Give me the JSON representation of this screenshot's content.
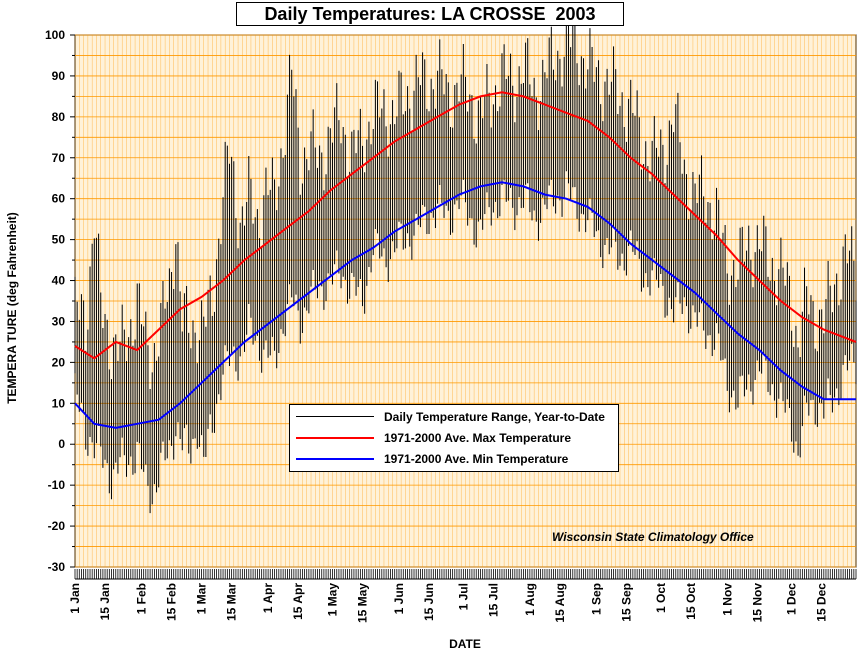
{
  "chart_data": {
    "type": "line",
    "title": "Daily Temperatures: LA CROSSE  2003",
    "xlabel": "DATE",
    "ylabel": "TEMPERA TURE (deg Fahrenheit)",
    "ylim": [
      -30,
      100
    ],
    "yticks": [
      -30,
      -20,
      -10,
      0,
      10,
      20,
      30,
      40,
      50,
      60,
      70,
      80,
      90,
      100
    ],
    "x_tick_labels": [
      "1 Jan",
      "15 Jan",
      "1 Feb",
      "15 Feb",
      "1 Mar",
      "15 Mar",
      "1 Apr",
      "15 Apr",
      "1 May",
      "15 May",
      "1 Jun",
      "15 Jun",
      "1 Jul",
      "15 Jul",
      "1 Aug",
      "15 Aug",
      "1 Sep",
      "15 Sep",
      "1 Oct",
      "15 Oct",
      "1 Nov",
      "15 Nov",
      "1 Dec",
      "15 Dec"
    ],
    "x_tick_days": [
      1,
      15,
      32,
      46,
      60,
      74,
      91,
      105,
      121,
      135,
      152,
      166,
      182,
      196,
      213,
      227,
      244,
      258,
      274,
      288,
      305,
      319,
      335,
      349
    ],
    "grid": true,
    "legend_position": "center-bottom",
    "annotation": "Wisconsin State Climatology Office",
    "colors": {
      "range": "#000000",
      "max": "#ff0000",
      "min": "#0000ff",
      "grid": "#ff9900",
      "background": "#fff2d9"
    },
    "series": [
      {
        "name": "Daily Temperature Range, Year-to-Date",
        "style": "range",
        "x_unit": "day_of_year",
        "points": [
          [
            1,
            12,
            32
          ],
          [
            6,
            3,
            30
          ],
          [
            10,
            0,
            56
          ],
          [
            13,
            -3,
            33
          ],
          [
            18,
            -8,
            25
          ],
          [
            22,
            -5,
            22
          ],
          [
            26,
            -4,
            28
          ],
          [
            30,
            -2,
            35
          ],
          [
            34,
            -10,
            24
          ],
          [
            37,
            -12,
            22
          ],
          [
            41,
            -6,
            28
          ],
          [
            45,
            -2,
            38
          ],
          [
            48,
            5,
            54
          ],
          [
            51,
            0,
            30
          ],
          [
            55,
            -2,
            28
          ],
          [
            58,
            5,
            30
          ],
          [
            61,
            -5,
            28
          ],
          [
            65,
            5,
            35
          ],
          [
            70,
            18,
            62
          ],
          [
            73,
            20,
            70
          ],
          [
            78,
            22,
            55
          ],
          [
            82,
            28,
            60
          ],
          [
            86,
            25,
            55
          ],
          [
            90,
            22,
            62
          ],
          [
            94,
            20,
            60
          ],
          [
            98,
            30,
            75
          ],
          [
            102,
            35,
            90
          ],
          [
            106,
            30,
            70
          ],
          [
            110,
            35,
            72
          ],
          [
            115,
            38,
            70
          ],
          [
            120,
            40,
            75
          ],
          [
            125,
            42,
            80
          ],
          [
            130,
            38,
            70
          ],
          [
            135,
            35,
            75
          ],
          [
            140,
            48,
            80
          ],
          [
            145,
            45,
            82
          ],
          [
            150,
            48,
            80
          ],
          [
            155,
            50,
            85
          ],
          [
            160,
            52,
            88
          ],
          [
            165,
            55,
            88
          ],
          [
            170,
            58,
            90
          ],
          [
            175,
            55,
            85
          ],
          [
            180,
            60,
            88
          ],
          [
            185,
            55,
            85
          ],
          [
            190,
            52,
            80
          ],
          [
            195,
            58,
            85
          ],
          [
            200,
            60,
            90
          ],
          [
            205,
            58,
            88
          ],
          [
            210,
            60,
            92
          ],
          [
            215,
            55,
            86
          ],
          [
            220,
            58,
            90
          ],
          [
            225,
            60,
            95
          ],
          [
            230,
            62,
            98
          ],
          [
            235,
            58,
            98
          ],
          [
            240,
            55,
            92
          ],
          [
            245,
            50,
            90
          ],
          [
            250,
            48,
            88
          ],
          [
            255,
            45,
            85
          ],
          [
            260,
            48,
            82
          ],
          [
            265,
            42,
            75
          ],
          [
            270,
            40,
            70
          ],
          [
            275,
            38,
            72
          ],
          [
            280,
            32,
            80
          ],
          [
            285,
            35,
            68
          ],
          [
            290,
            30,
            60
          ],
          [
            295,
            28,
            62
          ],
          [
            300,
            25,
            55
          ],
          [
            305,
            15,
            45
          ],
          [
            310,
            10,
            42
          ],
          [
            315,
            15,
            50
          ],
          [
            320,
            18,
            48
          ],
          [
            325,
            15,
            45
          ],
          [
            330,
            10,
            42
          ],
          [
            335,
            5,
            35
          ],
          [
            338,
            -2,
            25
          ],
          [
            342,
            8,
            35
          ],
          [
            346,
            10,
            32
          ],
          [
            350,
            8,
            30
          ],
          [
            355,
            12,
            40
          ],
          [
            360,
            18,
            45
          ],
          [
            365,
            20,
            44
          ]
        ]
      },
      {
        "name": "1971-2000 Ave. Max Temperature",
        "style": "line",
        "x_unit": "day_of_year",
        "points": [
          [
            1,
            24
          ],
          [
            10,
            21
          ],
          [
            20,
            25
          ],
          [
            30,
            23
          ],
          [
            40,
            28
          ],
          [
            50,
            33
          ],
          [
            60,
            36
          ],
          [
            70,
            40
          ],
          [
            80,
            45
          ],
          [
            90,
            49
          ],
          [
            100,
            53
          ],
          [
            110,
            57
          ],
          [
            120,
            62
          ],
          [
            130,
            66
          ],
          [
            140,
            70
          ],
          [
            150,
            74
          ],
          [
            160,
            77
          ],
          [
            170,
            80
          ],
          [
            180,
            83
          ],
          [
            190,
            85
          ],
          [
            200,
            86
          ],
          [
            210,
            85
          ],
          [
            220,
            83
          ],
          [
            230,
            81
          ],
          [
            240,
            79
          ],
          [
            250,
            75
          ],
          [
            260,
            70
          ],
          [
            270,
            66
          ],
          [
            280,
            61
          ],
          [
            290,
            56
          ],
          [
            300,
            51
          ],
          [
            310,
            45
          ],
          [
            320,
            40
          ],
          [
            330,
            35
          ],
          [
            340,
            31
          ],
          [
            350,
            28
          ],
          [
            365,
            25
          ]
        ]
      },
      {
        "name": "1971-2000 Ave. Min Temperature",
        "style": "line",
        "x_unit": "day_of_year",
        "points": [
          [
            1,
            10
          ],
          [
            10,
            5
          ],
          [
            20,
            4
          ],
          [
            30,
            5
          ],
          [
            40,
            6
          ],
          [
            50,
            10
          ],
          [
            60,
            15
          ],
          [
            70,
            20
          ],
          [
            80,
            25
          ],
          [
            90,
            29
          ],
          [
            100,
            33
          ],
          [
            110,
            37
          ],
          [
            120,
            41
          ],
          [
            130,
            45
          ],
          [
            140,
            48
          ],
          [
            150,
            52
          ],
          [
            160,
            55
          ],
          [
            170,
            58
          ],
          [
            180,
            61
          ],
          [
            190,
            63
          ],
          [
            200,
            64
          ],
          [
            210,
            63
          ],
          [
            220,
            61
          ],
          [
            230,
            60
          ],
          [
            240,
            58
          ],
          [
            250,
            54
          ],
          [
            260,
            49
          ],
          [
            270,
            45
          ],
          [
            280,
            41
          ],
          [
            290,
            37
          ],
          [
            300,
            32
          ],
          [
            310,
            27
          ],
          [
            320,
            23
          ],
          [
            330,
            18
          ],
          [
            340,
            14
          ],
          [
            350,
            11
          ],
          [
            365,
            11
          ]
        ]
      }
    ]
  }
}
